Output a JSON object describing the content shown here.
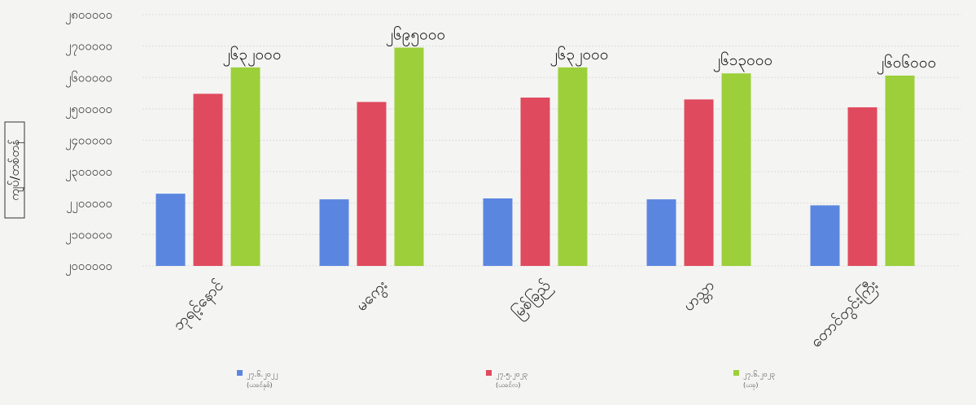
{
  "chart_data": {
    "type": "bar",
    "ylabel": "ကျပ်/တစ်တန်",
    "yticks": [
      "၂၀၀၀၀၀၀",
      "၂၁၀၀၀၀၀",
      "၂၂၀၀၀၀၀",
      "၂၃၀၀၀၀၀",
      "၂၄၀၀၀၀၀",
      "၂၅၀၀၀၀၀",
      "၂၆၀၀၀၀၀",
      "၂၇၀၀၀၀၀",
      "၂၈၀၀၀၀၀"
    ],
    "ylim": [
      2000000,
      2800000
    ],
    "grid": true,
    "categories": [
      "ဘုရင့်နောင်",
      "မကွေး",
      "မြစ်ခြည်",
      "ဟသ္တာ",
      "တောင်တွင်းကြီး"
    ],
    "series": [
      {
        "name": "၂၇.၆.၂၀၂၂",
        "sublabel": "(ယခင်နှစ်)",
        "color": "#5b86e0",
        "values": [
          2230000,
          2212000,
          2215000,
          2212000,
          2193000
        ]
      },
      {
        "name": "၂၇.၅.၂၀၂၃",
        "sublabel": "(ယခင်လ)",
        "color": "#e04a5e",
        "values": [
          2548000,
          2522000,
          2536000,
          2530000,
          2505000
        ]
      },
      {
        "name": "၂၇.၆.၂၀၂၃",
        "sublabel": "(ယခု)",
        "color": "#9ccf3a",
        "values": [
          2632000,
          2695000,
          2632000,
          2613000,
          2606000
        ]
      }
    ],
    "data_labels": [
      "၂၆၃၂၀၀၀",
      "၂၆၉၅၀၀၀",
      "၂၆၃၂၀၀၀",
      "၂၆၁၃၀၀၀",
      "၂၆၀၆၀၀၀"
    ],
    "legend_position": "bottom"
  }
}
